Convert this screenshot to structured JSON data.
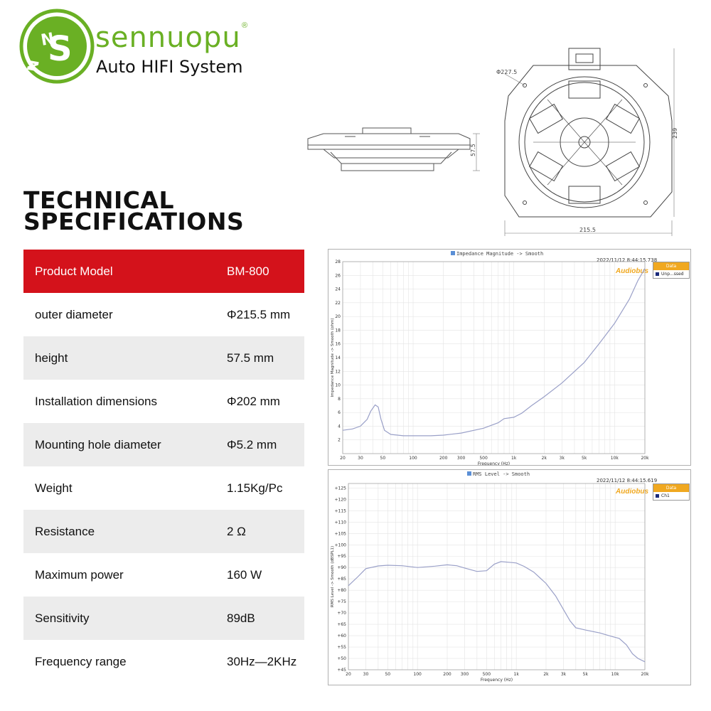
{
  "brand": {
    "name": "sennuopu",
    "registered": "®",
    "tagline": "Auto HIFI System"
  },
  "title": {
    "line1": "TECHNICAL",
    "line2": "SPECIFICATIONS"
  },
  "drawings": {
    "side_height": "57.5",
    "hole_circle": "Φ227.5",
    "front_height": "239",
    "front_width": "215.5"
  },
  "specs": [
    {
      "label": "Product Model",
      "value": "BM-800"
    },
    {
      "label": "outer diameter",
      "value": "Φ215.5 mm"
    },
    {
      "label": "height",
      "value": "57.5 mm"
    },
    {
      "label": "Installation dimensions",
      "value": "Φ202 mm"
    },
    {
      "label": "Mounting hole diameter",
      "value": "Φ5.2 mm"
    },
    {
      "label": "Weight",
      "value": "1.15Kg/Pc"
    },
    {
      "label": "Resistance",
      "value": "2 Ω"
    },
    {
      "label": "Maximum power",
      "value": "160 W"
    },
    {
      "label": "Sensitivity",
      "value": "89dB"
    },
    {
      "label": "Frequency range",
      "value": "30Hz—2KHz"
    }
  ],
  "colors": {
    "brand_green": "#6ab024",
    "header_red": "#d4121b",
    "row_shade": "#ececec",
    "curve": "#9aa0c8",
    "legend_orange": "#f0a820"
  },
  "chart_data": [
    {
      "type": "line",
      "title": "Impedance Magnitude -> Smooth",
      "timestamp": "2022/11/12 8:44:15.738",
      "brand": "Audiobus",
      "legend_title": "Data",
      "xlabel": "Frequency (Hz)",
      "ylabel": "Impedance Magnitude -> Smooth (ohm)",
      "xscale": "log",
      "xlim": [
        20,
        20000
      ],
      "ylim": [
        0,
        28
      ],
      "x_ticks": [
        20,
        30,
        50,
        100,
        200,
        300,
        500,
        1000,
        2000,
        3000,
        5000,
        10000,
        20000
      ],
      "x_tick_labels": [
        "20",
        "30",
        "50",
        "100",
        "200",
        "300",
        "500",
        "1k",
        "2k",
        "3k",
        "5k",
        "10k",
        "20k"
      ],
      "y_ticks": [
        2,
        4,
        6,
        8,
        10,
        12,
        14,
        16,
        18,
        20,
        22,
        24,
        26,
        28
      ],
      "grid": true,
      "legend_position": "top-right",
      "series": [
        {
          "name": "Unp...ssed",
          "x": [
            20,
            25,
            30,
            35,
            38,
            42,
            45,
            48,
            52,
            60,
            80,
            100,
            150,
            200,
            300,
            500,
            700,
            800,
            1000,
            1200,
            1500,
            2000,
            3000,
            5000,
            7000,
            10000,
            14000,
            17000,
            20000
          ],
          "y": [
            3.4,
            3.6,
            4.0,
            5.0,
            6.2,
            7.1,
            6.8,
            5.0,
            3.4,
            2.8,
            2.6,
            2.6,
            2.6,
            2.7,
            3.0,
            3.7,
            4.5,
            5.1,
            5.3,
            5.9,
            7.0,
            8.3,
            10.3,
            13.3,
            16.0,
            19.0,
            22.5,
            25.2,
            27.0
          ]
        }
      ]
    },
    {
      "type": "line",
      "title": "RMS Level -> Smooth",
      "timestamp": "2022/11/12 8:44:15.619",
      "brand": "Audiobus",
      "legend_title": "Data",
      "xlabel": "Frequency (Hz)",
      "ylabel": "RMS Level -> Smooth (dBSPL1)",
      "xscale": "log",
      "xlim": [
        20,
        20000
      ],
      "ylim": [
        45,
        127
      ],
      "x_ticks": [
        20,
        30,
        50,
        100,
        200,
        300,
        500,
        1000,
        2000,
        3000,
        5000,
        10000,
        20000
      ],
      "x_tick_labels": [
        "20",
        "30",
        "50",
        "100",
        "200",
        "300",
        "500",
        "1k",
        "2k",
        "3k",
        "5k",
        "10k",
        "20k"
      ],
      "y_ticks": [
        45,
        50,
        55,
        60,
        65,
        70,
        75,
        80,
        85,
        90,
        95,
        100,
        105,
        110,
        115,
        120,
        125
      ],
      "y_tick_labels": [
        "+45",
        "+50",
        "+55",
        "+60",
        "+65",
        "+70",
        "+75",
        "+80",
        "+85",
        "+90",
        "+95",
        "+100",
        "+105",
        "+110",
        "+115",
        "+120",
        "+125"
      ],
      "grid": true,
      "legend_position": "top-right",
      "series": [
        {
          "name": "Ch1",
          "x": [
            20,
            25,
            30,
            40,
            50,
            70,
            100,
            150,
            200,
            250,
            300,
            400,
            500,
            600,
            700,
            900,
            1000,
            1200,
            1500,
            2000,
            2500,
            3000,
            3500,
            4000,
            5000,
            7000,
            9000,
            11000,
            13000,
            15000,
            17000,
            20000
          ],
          "y": [
            82,
            86,
            89.5,
            90.7,
            91.0,
            90.8,
            90.0,
            90.6,
            91.2,
            90.8,
            89.8,
            88.3,
            88.6,
            91.5,
            92.6,
            92.2,
            92.0,
            90.5,
            88.0,
            83.0,
            77.5,
            71.5,
            66.5,
            63.5,
            62.5,
            61.2,
            59.8,
            58.8,
            56.0,
            52.0,
            50.0,
            48.5
          ]
        }
      ]
    }
  ]
}
